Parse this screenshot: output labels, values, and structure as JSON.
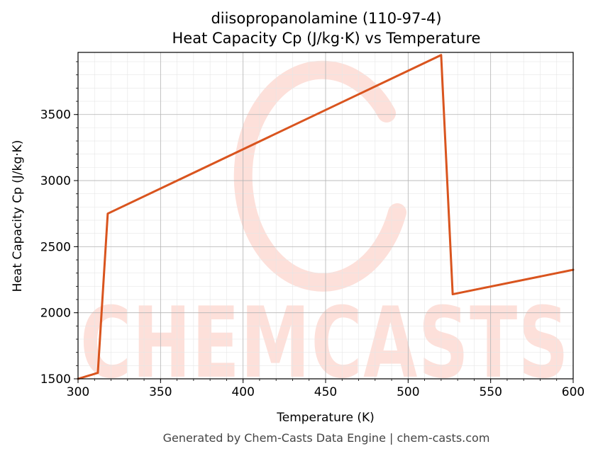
{
  "chart_data": {
    "type": "line",
    "title": "diisopropanolamine (110-97-4)",
    "subtitle": "Heat Capacity Cp (J/kg·K) vs Temperature",
    "xlabel": "Temperature (K)",
    "ylabel": "Heat Capacity Cp (J/kg·K)",
    "xlim": [
      300,
      600
    ],
    "ylim": [
      1500,
      3970
    ],
    "x_ticks": [
      300,
      350,
      400,
      450,
      500,
      550,
      600
    ],
    "y_ticks": [
      1500,
      2000,
      2500,
      3000,
      3500
    ],
    "x_minor_step": 10,
    "y_minor_step": 100,
    "grid": true,
    "series": [
      {
        "color": "#d9541e",
        "x": [
          300,
          312,
          318,
          520,
          527,
          600
        ],
        "y": [
          1500,
          1545,
          2750,
          3950,
          2140,
          2325
        ]
      }
    ]
  },
  "watermark": {
    "text": "CHEMCASTS",
    "color": "#fde0da"
  },
  "footer": "Generated by Chem-Casts Data Engine | chem-casts.com"
}
